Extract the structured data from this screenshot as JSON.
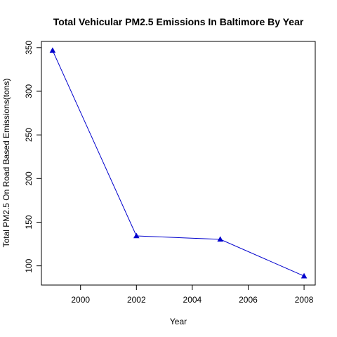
{
  "chart_data": {
    "type": "line",
    "title": "Total Vehicular PM2.5 Emissions In Baltimore By Year",
    "xlabel": "Year",
    "ylabel": "Total PM2.5 On Road Based Emissions(tons)",
    "x": [
      1999,
      2002,
      2005,
      2008
    ],
    "series": [
      {
        "values": [
          346.8,
          134.3,
          130.4,
          88.3
        ]
      }
    ],
    "xlim": [
      1998.6,
      2008.4
    ],
    "ylim": [
      78.0,
      357.1
    ],
    "xticks": [
      2000,
      2002,
      2004,
      2006,
      2008
    ],
    "yticks": [
      100,
      150,
      200,
      250,
      300,
      350
    ],
    "grid": false,
    "legend": "none",
    "line_color": "#0000cd",
    "marker": "filled-triangle"
  }
}
